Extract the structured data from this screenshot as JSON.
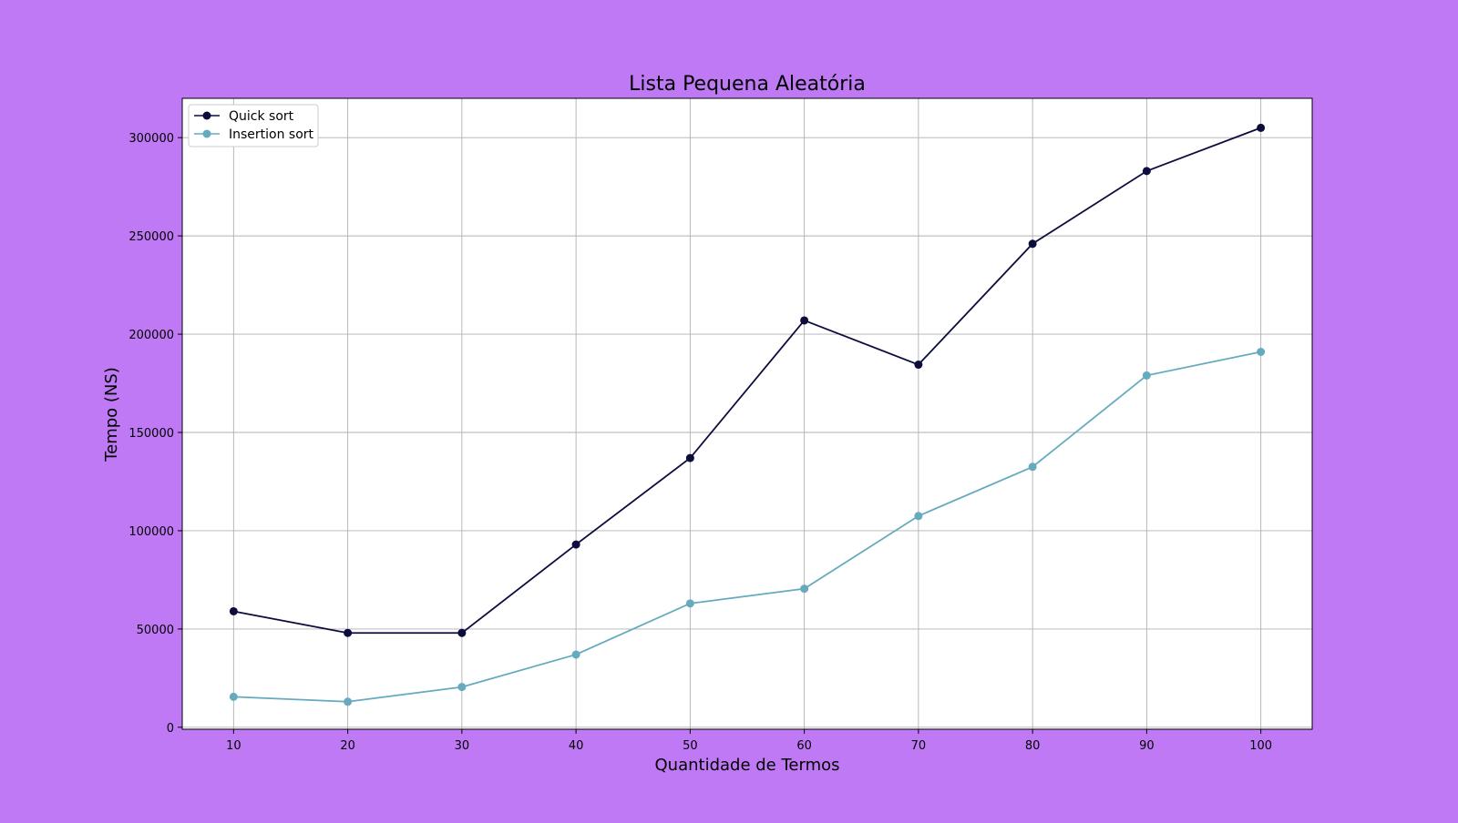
{
  "chart_data": {
    "type": "line",
    "title": "Lista Pequena Aleatória",
    "xlabel": "Quantidade de Termos",
    "ylabel": "Tempo (NS)",
    "x": [
      10,
      20,
      30,
      40,
      50,
      60,
      70,
      80,
      90,
      100
    ],
    "xticks": [
      10,
      20,
      30,
      40,
      50,
      60,
      70,
      80,
      90,
      100
    ],
    "yticks": [
      0,
      50000,
      100000,
      150000,
      200000,
      250000,
      300000
    ],
    "xlim": [
      5.5,
      104.5
    ],
    "ylim": [
      -1000,
      320000
    ],
    "grid": true,
    "legend_position": "top-left",
    "background_color": "#bf79f5",
    "series": [
      {
        "name": "Quick sort",
        "color": "#0d0d3d",
        "marker": "circle",
        "values": [
          59000,
          48000,
          48000,
          93000,
          137000,
          207000,
          184500,
          246000,
          283000,
          305000
        ]
      },
      {
        "name": "Insertion sort",
        "color": "#66aabd",
        "marker": "circle",
        "values": [
          15500,
          13000,
          20500,
          37000,
          63000,
          70500,
          107500,
          132500,
          179000,
          191000
        ]
      }
    ]
  }
}
